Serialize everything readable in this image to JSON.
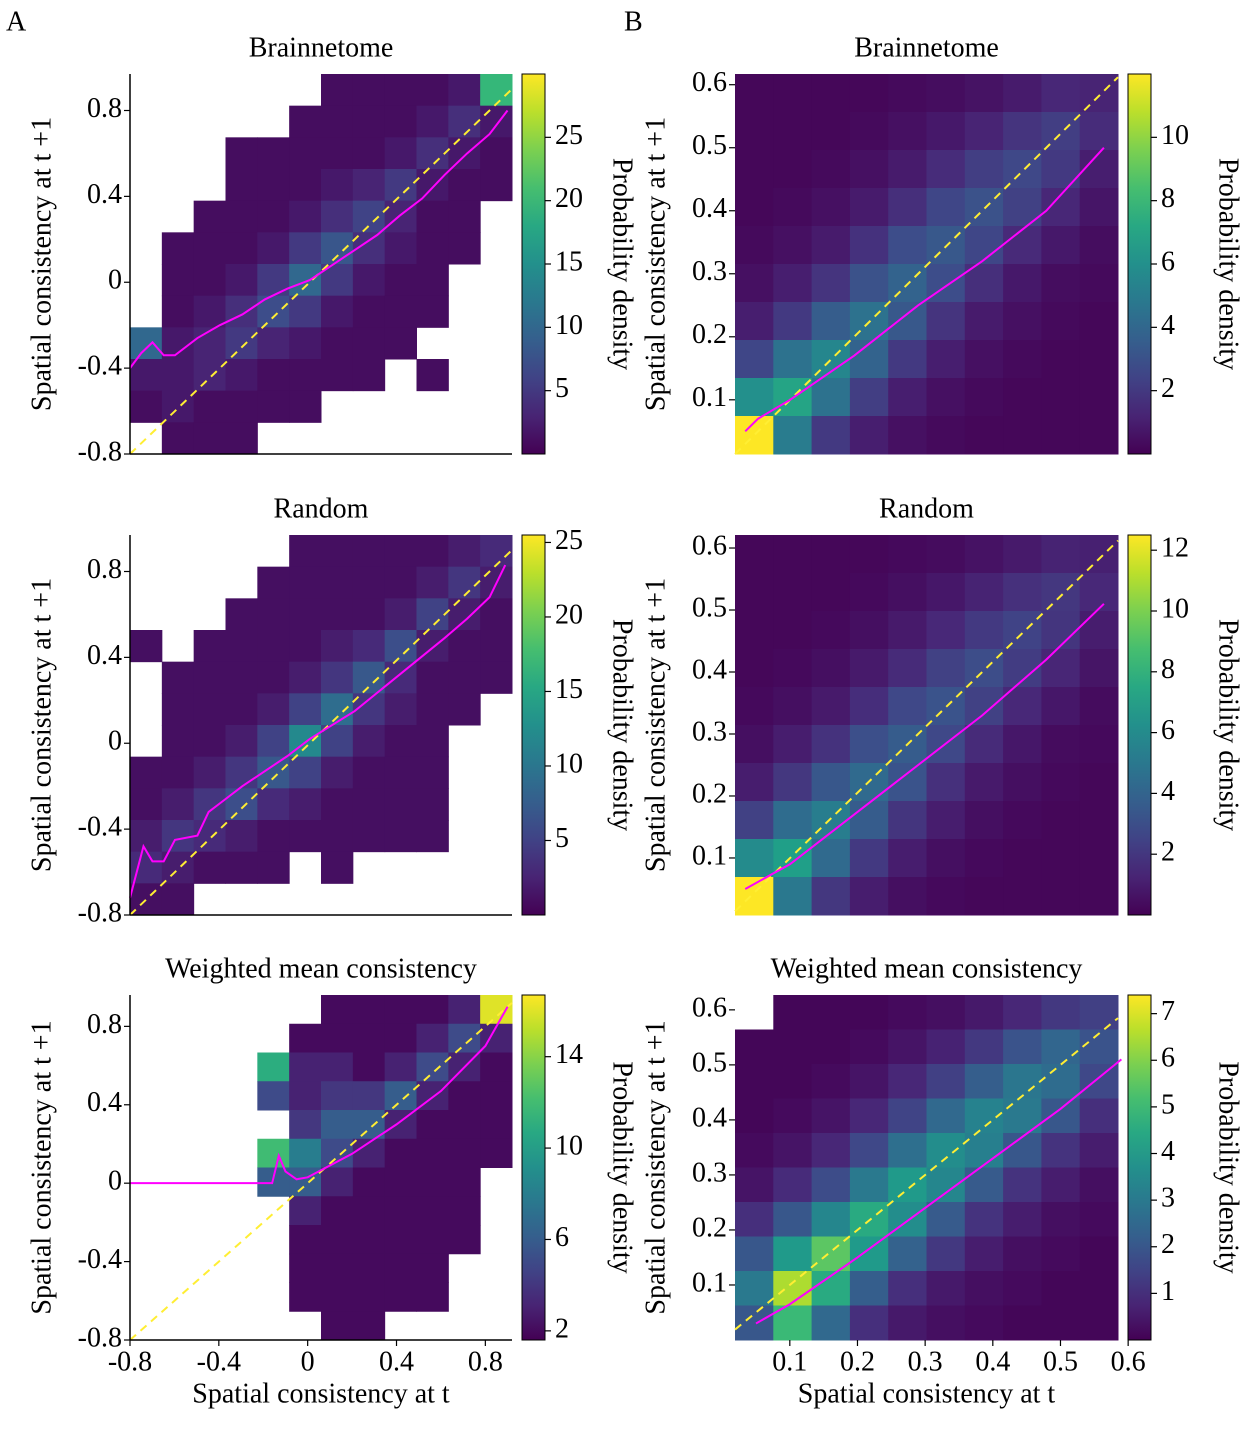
{
  "panel_labels": [
    "A",
    "B"
  ],
  "chart_data": [
    {
      "type": "heatmap",
      "title": "Brainnetome",
      "ylabel": "Spatial consistency at t +1",
      "colorbar_label": "Probability density",
      "colormap": "viridis",
      "xlim": [
        -0.8,
        0.9
      ],
      "ylim": [
        -0.8,
        0.97
      ],
      "yticks": [
        -0.8,
        -0.4,
        0,
        0.4,
        0.8
      ],
      "clim": [
        0,
        30
      ],
      "cticks": [
        5,
        10,
        15,
        20,
        25
      ],
      "z": [
        [
          null,
          null,
          null,
          null,
          null,
          null,
          1,
          1,
          1,
          1,
          2,
          20
        ],
        [
          null,
          null,
          null,
          null,
          null,
          1,
          1,
          1,
          1,
          2,
          4,
          2
        ],
        [
          null,
          null,
          null,
          1,
          1,
          1,
          1,
          1,
          2,
          4,
          2,
          1
        ],
        [
          null,
          null,
          null,
          1,
          1,
          1,
          2,
          3,
          5,
          2,
          1,
          1
        ],
        [
          null,
          null,
          1,
          1,
          1,
          2,
          4,
          6,
          3,
          1,
          1,
          null
        ],
        [
          null,
          1,
          1,
          1,
          2,
          5,
          8,
          4,
          2,
          1,
          1,
          null
        ],
        [
          null,
          1,
          1,
          2,
          5,
          10,
          5,
          2,
          1,
          1,
          null,
          null
        ],
        [
          null,
          1,
          2,
          4,
          7,
          5,
          2,
          1,
          1,
          1,
          null,
          null
        ],
        [
          10,
          2,
          3,
          5,
          3,
          2,
          1,
          1,
          1,
          null,
          null,
          null
        ],
        [
          2,
          2,
          3,
          2,
          1,
          1,
          1,
          1,
          null,
          1,
          null,
          null
        ],
        [
          1,
          2,
          1,
          1,
          1,
          1,
          null,
          null,
          null,
          null,
          null,
          null
        ],
        [
          null,
          1,
          1,
          1,
          null,
          null,
          null,
          null,
          null,
          null,
          null,
          null
        ]
      ],
      "mean_line": {
        "color": "#ff00ff",
        "x": [
          -0.8,
          -0.75,
          -0.7,
          -0.65,
          -0.6,
          -0.5,
          -0.4,
          -0.3,
          -0.2,
          -0.1,
          0,
          0.1,
          0.2,
          0.3,
          0.4,
          0.5,
          0.6,
          0.7,
          0.8,
          0.88
        ],
        "y": [
          -0.4,
          -0.33,
          -0.28,
          -0.34,
          -0.34,
          -0.26,
          -0.2,
          -0.15,
          -0.08,
          -0.03,
          0.01,
          0.08,
          0.15,
          0.22,
          0.31,
          0.39,
          0.5,
          0.6,
          0.69,
          0.8
        ]
      }
    },
    {
      "type": "heatmap",
      "title": "Brainnetome",
      "ylabel": "Spatial consistency at t +1",
      "colorbar_label": "Probability density",
      "colormap": "viridis",
      "xlim": [
        0.014,
        0.612
      ],
      "ylim": [
        0.014,
        0.617
      ],
      "yticks": [
        0.1,
        0.2,
        0.3,
        0.4,
        0.5,
        0.6
      ],
      "clim": [
        0,
        12
      ],
      "cticks": [
        2,
        4,
        6,
        8,
        10
      ],
      "z": [
        [
          0.2,
          0.2,
          0.2,
          0.2,
          0.3,
          0.4,
          0.6,
          0.9,
          1.3,
          1.2
        ],
        [
          0.2,
          0.2,
          0.2,
          0.3,
          0.5,
          0.8,
          1.2,
          1.8,
          2.2,
          1.5
        ],
        [
          0.2,
          0.2,
          0.3,
          0.5,
          0.9,
          1.5,
          2.2,
          2.6,
          2,
          1
        ],
        [
          0.2,
          0.3,
          0.5,
          0.9,
          1.6,
          2.5,
          3,
          2.3,
          1.3,
          0.7
        ],
        [
          0.3,
          0.5,
          0.9,
          1.7,
          2.8,
          3.3,
          2.5,
          1.4,
          0.8,
          0.4
        ],
        [
          0.5,
          1,
          1.8,
          3,
          3.8,
          2.8,
          1.6,
          0.8,
          0.4,
          0.3
        ],
        [
          1,
          2,
          3.5,
          4.5,
          3.3,
          1.8,
          0.9,
          0.5,
          0.3,
          0.2
        ],
        [
          2.5,
          4.5,
          5.5,
          3.8,
          2,
          1,
          0.5,
          0.3,
          0.2,
          0.2
        ],
        [
          6,
          7,
          4.5,
          2.2,
          1,
          0.5,
          0.3,
          0.2,
          0.2,
          0.2
        ],
        [
          12,
          5,
          2,
          1,
          0.5,
          0.3,
          0.2,
          0.2,
          0.2,
          0.2
        ]
      ],
      "mean_line": {
        "color": "#ff00ff",
        "x": [
          0.03,
          0.05,
          0.1,
          0.2,
          0.3,
          0.4,
          0.5,
          0.59
        ],
        "y": [
          0.05,
          0.07,
          0.1,
          0.17,
          0.25,
          0.32,
          0.4,
          0.5
        ]
      }
    },
    {
      "type": "heatmap",
      "title": "Random",
      "ylabel": "Spatial consistency at t +1",
      "colorbar_label": "Probability density",
      "colormap": "viridis",
      "xlim": [
        -0.8,
        0.9
      ],
      "ylim": [
        -0.8,
        0.97
      ],
      "yticks": [
        -0.8,
        -0.4,
        0,
        0.4,
        0.8
      ],
      "clim": [
        0,
        25.5
      ],
      "cticks": [
        5,
        10,
        15,
        20,
        25
      ],
      "z": [
        [
          null,
          null,
          null,
          null,
          null,
          1,
          1,
          1,
          1,
          1,
          2,
          3
        ],
        [
          null,
          null,
          null,
          null,
          1,
          1,
          1,
          1,
          1,
          2,
          4,
          2
        ],
        [
          null,
          null,
          null,
          1,
          1,
          1,
          1,
          1,
          2,
          5,
          2,
          1
        ],
        [
          1,
          null,
          1,
          1,
          1,
          1,
          2,
          3,
          6,
          2,
          1,
          1
        ],
        [
          null,
          1,
          1,
          1,
          1,
          2,
          4,
          7,
          3,
          1,
          1,
          1
        ],
        [
          null,
          1,
          1,
          1,
          2,
          5,
          9,
          4,
          2,
          1,
          1,
          null
        ],
        [
          null,
          1,
          1,
          2,
          5,
          12,
          5,
          2,
          1,
          1,
          null,
          null
        ],
        [
          1,
          1,
          2,
          4,
          7,
          5,
          2,
          1,
          1,
          1,
          null,
          null
        ],
        [
          1,
          2,
          4,
          6,
          3,
          2,
          1,
          1,
          1,
          1,
          null,
          null
        ],
        [
          2,
          4,
          3,
          2,
          1,
          1,
          1,
          1,
          1,
          1,
          null,
          null
        ],
        [
          3,
          2,
          1,
          1,
          1,
          null,
          1,
          null,
          null,
          null,
          null,
          null
        ],
        [
          1,
          1,
          null,
          null,
          null,
          null,
          null,
          null,
          null,
          null,
          null,
          null
        ]
      ],
      "mean_line": {
        "color": "#ff00ff",
        "x": [
          -0.8,
          -0.77,
          -0.74,
          -0.7,
          -0.65,
          -0.6,
          -0.5,
          -0.45,
          -0.4,
          -0.3,
          -0.2,
          -0.1,
          0,
          0.2,
          0.4,
          0.6,
          0.7,
          0.8,
          0.87
        ],
        "y": [
          -0.72,
          -0.6,
          -0.48,
          -0.55,
          -0.55,
          -0.45,
          -0.43,
          -0.32,
          -0.28,
          -0.2,
          -0.13,
          -0.06,
          0.02,
          0.15,
          0.32,
          0.49,
          0.58,
          0.68,
          0.83
        ]
      }
    },
    {
      "type": "heatmap",
      "title": "Random",
      "ylabel": "Spatial consistency at t +1",
      "colorbar_label": "Probability density",
      "colormap": "viridis",
      "xlim": [
        0.014,
        0.612
      ],
      "ylim": [
        0.008,
        0.621
      ],
      "yticks": [
        0.1,
        0.2,
        0.3,
        0.4,
        0.5,
        0.6
      ],
      "clim": [
        0,
        12.5
      ],
      "cticks": [
        2,
        4,
        6,
        8,
        10,
        12
      ],
      "z": [
        [
          0.2,
          0.2,
          0.2,
          0.2,
          0.3,
          0.4,
          0.6,
          0.9,
          1.2,
          1.1
        ],
        [
          0.2,
          0.2,
          0.2,
          0.3,
          0.5,
          0.8,
          1.2,
          1.7,
          2,
          1.4
        ],
        [
          0.2,
          0.2,
          0.3,
          0.5,
          0.9,
          1.4,
          2.1,
          2.5,
          1.9,
          1
        ],
        [
          0.2,
          0.3,
          0.5,
          0.9,
          1.5,
          2.4,
          2.9,
          2.2,
          1.3,
          0.7
        ],
        [
          0.3,
          0.5,
          0.9,
          1.6,
          2.7,
          3.2,
          2.4,
          1.4,
          0.8,
          0.4
        ],
        [
          0.5,
          1,
          1.8,
          3,
          3.6,
          2.7,
          1.5,
          0.8,
          0.4,
          0.3
        ],
        [
          1,
          2,
          3.4,
          4.3,
          3.2,
          1.7,
          0.9,
          0.5,
          0.3,
          0.2
        ],
        [
          2.4,
          4.4,
          5.3,
          3.6,
          1.9,
          1,
          0.5,
          0.3,
          0.2,
          0.2
        ],
        [
          6,
          7,
          4.3,
          2.1,
          1,
          0.5,
          0.3,
          0.2,
          0.2,
          0.2
        ],
        [
          12.5,
          5,
          2,
          1,
          0.5,
          0.3,
          0.2,
          0.2,
          0.2,
          0.2
        ]
      ],
      "mean_line": {
        "color": "#ff00ff",
        "x": [
          0.03,
          0.1,
          0.2,
          0.3,
          0.4,
          0.5,
          0.59
        ],
        "y": [
          0.05,
          0.09,
          0.17,
          0.25,
          0.33,
          0.42,
          0.51
        ]
      }
    },
    {
      "type": "heatmap",
      "title": "Weighted mean consistency",
      "xlabel": "Spatial consistency at t",
      "ylabel": "Spatial consistency at t +1",
      "colorbar_label": "Probability density",
      "colormap": "viridis",
      "xlim": [
        -0.8,
        0.92
      ],
      "ylim": [
        -0.8,
        0.96
      ],
      "xticks": [
        -0.8,
        -0.4,
        0,
        0.4,
        0.8
      ],
      "yticks": [
        -0.8,
        -0.4,
        0,
        0.4,
        0.8
      ],
      "clim": [
        1.6,
        16.7
      ],
      "cticks": [
        2,
        6,
        10,
        14
      ],
      "z": [
        [
          null,
          null,
          null,
          null,
          null,
          null,
          2,
          2,
          2,
          2,
          3,
          16
        ],
        [
          null,
          null,
          null,
          null,
          null,
          2,
          2,
          2,
          2,
          3,
          5,
          3
        ],
        [
          null,
          null,
          null,
          null,
          11,
          3,
          3,
          2,
          3,
          5,
          3,
          2
        ],
        [
          null,
          null,
          null,
          null,
          5,
          3,
          4,
          4,
          6,
          3,
          2,
          2
        ],
        [
          null,
          null,
          null,
          null,
          null,
          4,
          6,
          6,
          3,
          2,
          2,
          2
        ],
        [
          null,
          null,
          null,
          null,
          12,
          8,
          5,
          3,
          2,
          2,
          2,
          2
        ],
        [
          null,
          null,
          null,
          null,
          6,
          6,
          3,
          2,
          2,
          2,
          2,
          null
        ],
        [
          null,
          null,
          null,
          null,
          null,
          3,
          2,
          2,
          2,
          2,
          2,
          null
        ],
        [
          null,
          null,
          null,
          null,
          null,
          2,
          2,
          2,
          2,
          2,
          2,
          null
        ],
        [
          null,
          null,
          null,
          null,
          null,
          2,
          2,
          2,
          2,
          2,
          null,
          null
        ],
        [
          null,
          null,
          null,
          null,
          null,
          2,
          2,
          2,
          2,
          2,
          null,
          null
        ],
        [
          null,
          null,
          null,
          null,
          null,
          null,
          2,
          2,
          null,
          null,
          null,
          null
        ]
      ],
      "mean_line": {
        "color": "#ff00ff",
        "x": [
          -0.8,
          -0.6,
          -0.4,
          -0.2,
          -0.16,
          -0.13,
          -0.1,
          -0.05,
          0,
          0.2,
          0.4,
          0.6,
          0.8,
          0.9
        ],
        "y": [
          0,
          0,
          0,
          0,
          0,
          0.14,
          0.06,
          0.02,
          0.03,
          0.15,
          0.3,
          0.47,
          0.7,
          0.9
        ]
      }
    },
    {
      "type": "heatmap",
      "title": "Weighted mean consistency",
      "xlabel": "Spatial consistency at t",
      "ylabel": "Spatial consistency at t +1",
      "colorbar_label": "Probability density",
      "colormap": "viridis",
      "xlim": [
        0.019,
        0.585
      ],
      "ylim": [
        0,
        0.627
      ],
      "xticks": [
        0.1,
        0.2,
        0.3,
        0.4,
        0.5,
        0.6
      ],
      "yticks": [
        0.1,
        0.2,
        0.3,
        0.4,
        0.5,
        0.6
      ],
      "clim": [
        0,
        7.4
      ],
      "cticks": [
        1,
        2,
        3,
        4,
        5,
        6,
        7
      ],
      "z": [
        [
          null,
          0.1,
          0.1,
          0.1,
          0.2,
          0.3,
          0.5,
          0.8,
          1.2,
          1.4
        ],
        [
          0.1,
          0.1,
          0.1,
          0.2,
          0.4,
          0.7,
          1.2,
          1.9,
          2.4,
          1.9
        ],
        [
          0.1,
          0.1,
          0.2,
          0.4,
          0.8,
          1.4,
          2.2,
          2.9,
          2.6,
          1.6
        ],
        [
          0.1,
          0.2,
          0.4,
          0.8,
          1.5,
          2.5,
          3.3,
          3,
          2,
          1
        ],
        [
          0.2,
          0.4,
          0.8,
          1.6,
          2.7,
          3.6,
          3.2,
          2,
          1.1,
          0.6
        ],
        [
          0.4,
          0.9,
          1.7,
          3,
          4,
          3.4,
          2.1,
          1.1,
          0.6,
          0.3
        ],
        [
          1,
          2,
          3.4,
          4.5,
          3.6,
          2.1,
          1.1,
          0.6,
          0.3,
          0.2
        ],
        [
          2,
          4,
          5.5,
          4,
          2.3,
          1.2,
          0.6,
          0.3,
          0.2,
          0.1
        ],
        [
          3,
          6.5,
          4.5,
          2.2,
          1,
          0.5,
          0.3,
          0.2,
          0.1,
          0.1
        ],
        [
          2,
          5,
          2.5,
          1,
          0.5,
          0.3,
          0.2,
          0.1,
          0.1,
          0.1
        ]
      ],
      "mean_line": {
        "color": "#ff00ff",
        "x": [
          0.05,
          0.1,
          0.2,
          0.3,
          0.4,
          0.5,
          0.59
        ],
        "y": [
          0.03,
          0.065,
          0.15,
          0.24,
          0.33,
          0.42,
          0.51
        ]
      }
    }
  ]
}
